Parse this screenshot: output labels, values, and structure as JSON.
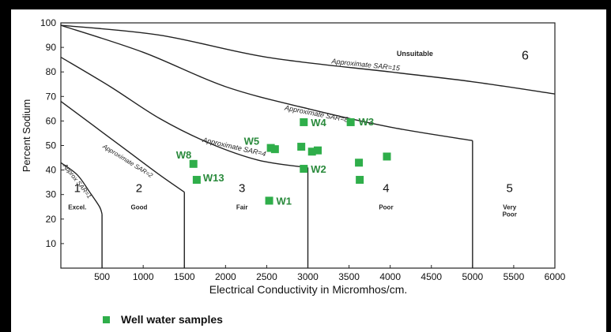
{
  "chart_data": {
    "type": "scatter",
    "xlabel": "Electrical Conductivity in Micromhos/cm.",
    "ylabel": "Percent Sodium",
    "xlim": [
      0,
      6000
    ],
    "ylim": [
      0,
      100
    ],
    "x_ticks": [
      500,
      1000,
      1500,
      2000,
      2500,
      3000,
      3500,
      4000,
      4500,
      5000,
      5500,
      6000
    ],
    "y_ticks": [
      10,
      20,
      30,
      40,
      50,
      60,
      70,
      80,
      90,
      100
    ],
    "series": [
      {
        "name": "Well water samples",
        "color": "#2fae4a",
        "points": [
          {
            "x": 2550,
            "y": 49,
            "label": "W5"
          },
          {
            "x": 2950,
            "y": 59.5,
            "label": "W4"
          },
          {
            "x": 3520,
            "y": 59.5,
            "label": "W3"
          },
          {
            "x": 2950,
            "y": 40.5,
            "label": "W2"
          },
          {
            "x": 2530,
            "y": 27.5,
            "label": "W1"
          },
          {
            "x": 1610,
            "y": 42.5,
            "label": "W8"
          },
          {
            "x": 1650,
            "y": 36,
            "label": "W13"
          },
          {
            "x": 2600,
            "y": 48.5,
            "label": ""
          },
          {
            "x": 2920,
            "y": 49.5,
            "label": ""
          },
          {
            "x": 3050,
            "y": 47.5,
            "label": ""
          },
          {
            "x": 3120,
            "y": 48,
            "label": ""
          },
          {
            "x": 3620,
            "y": 43,
            "label": ""
          },
          {
            "x": 3630,
            "y": 36,
            "label": ""
          },
          {
            "x": 3960,
            "y": 45.5,
            "label": ""
          }
        ]
      }
    ],
    "zone_numbers": [
      "1",
      "2",
      "3",
      "4",
      "5",
      "6"
    ],
    "zone_names": [
      "Excel.",
      "Good",
      "Fair",
      "Poor",
      "Very Poor",
      "Unsuitable"
    ],
    "curve_labels": [
      "Approx SAR=1",
      "Approximate SAR=2",
      "Approximate SAR=4",
      "Approximate SAR=8",
      "Approximate SAR=15"
    ],
    "grid": false,
    "legend_position": "bottom-left"
  }
}
